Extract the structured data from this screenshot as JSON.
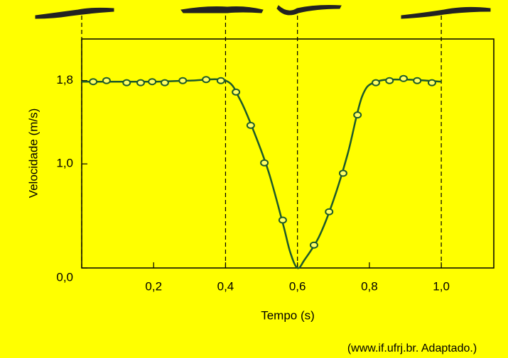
{
  "chart_data": {
    "type": "line",
    "xlabel": "Tempo (s)",
    "ylabel": "Velocidade (m/s)",
    "source": "(www.if.ufrj.br. Adaptado.)",
    "xlim": [
      0,
      1.146
    ],
    "ylim": [
      0,
      2.2
    ],
    "xticks": [
      {
        "value": 0.2,
        "label": "0,2"
      },
      {
        "value": 0.4,
        "label": "0,4"
      },
      {
        "value": 0.6,
        "label": "0,6"
      },
      {
        "value": 0.8,
        "label": "0,8"
      },
      {
        "value": 1.0,
        "label": "1,0"
      }
    ],
    "yticks": [
      {
        "value": 0,
        "label": "0,0"
      },
      {
        "value": 1.0,
        "label": "1,0"
      },
      {
        "value": 1.8,
        "label": "1,8"
      }
    ],
    "vlines": [
      0,
      0.4,
      0.6,
      1.0
    ],
    "series": [
      {
        "kind": "curve",
        "color": "#1d5a2a",
        "x": [
          0,
          0.1,
          0.2,
          0.3,
          0.4,
          0.44,
          0.48,
          0.52,
          0.56,
          0.58,
          0.6,
          0.62,
          0.66,
          0.7,
          0.74,
          0.78,
          0.82,
          0.9,
          1.0
        ],
        "values": [
          1.79,
          1.79,
          1.79,
          1.8,
          1.8,
          1.62,
          1.3,
          0.92,
          0.42,
          0.15,
          0.0,
          0.08,
          0.3,
          0.65,
          1.1,
          1.65,
          1.79,
          1.81,
          1.79
        ]
      },
      {
        "kind": "points",
        "color": "#1d5a2a",
        "x": [
          0.032,
          0.069,
          0.125,
          0.164,
          0.196,
          0.231,
          0.281,
          0.346,
          0.387,
          0.429,
          0.47,
          0.508,
          0.559,
          0.646,
          0.688,
          0.727,
          0.767,
          0.818,
          0.856,
          0.895,
          0.933,
          0.974
        ],
        "values": [
          1.79,
          1.8,
          1.78,
          1.78,
          1.79,
          1.78,
          1.8,
          1.81,
          1.8,
          1.69,
          1.37,
          1.01,
          0.46,
          0.22,
          0.54,
          0.91,
          1.47,
          1.78,
          1.8,
          1.82,
          1.8,
          1.78
        ]
      }
    ]
  }
}
